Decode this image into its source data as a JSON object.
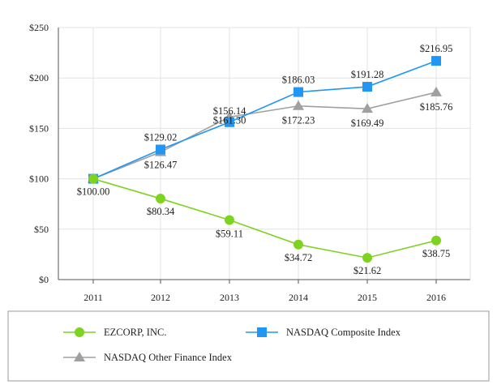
{
  "chart_data": {
    "type": "line",
    "title": "",
    "xlabel": "",
    "ylabel": "",
    "categories": [
      "2011",
      "2012",
      "2013",
      "2014",
      "2015",
      "2016"
    ],
    "ylim": [
      0,
      250
    ],
    "yticks": [
      0,
      50,
      100,
      150,
      200,
      250
    ],
    "ytick_labels": [
      "$0",
      "$50",
      "$100",
      "$150",
      "$200",
      "$250"
    ],
    "grid": true,
    "legend_position": "bottom",
    "series": [
      {
        "name": "EZCORP, INC.",
        "color": "#7ed321",
        "marker": "circle",
        "values": [
          100.0,
          80.34,
          59.11,
          34.72,
          21.62,
          38.75
        ],
        "labels": [
          "$100.00",
          "$80.34",
          "$59.11",
          "$34.72",
          "$21.62",
          "$38.75"
        ]
      },
      {
        "name": "NASDAQ Composite Index",
        "color": "#2196f3",
        "marker": "square",
        "values": [
          100.0,
          129.02,
          156.14,
          186.03,
          191.28,
          216.95
        ],
        "labels": [
          "",
          "$129.02",
          "$156.14",
          "$186.03",
          "$191.28",
          "$216.95"
        ]
      },
      {
        "name": "NASDAQ Other Finance Index",
        "color": "#a0a0a0",
        "marker": "triangle",
        "values": [
          100.0,
          126.47,
          161.3,
          172.23,
          169.49,
          185.76
        ],
        "labels": [
          "",
          "$126.47",
          "$161.30",
          "$172.23",
          "$169.49",
          "$185.76"
        ]
      }
    ]
  }
}
